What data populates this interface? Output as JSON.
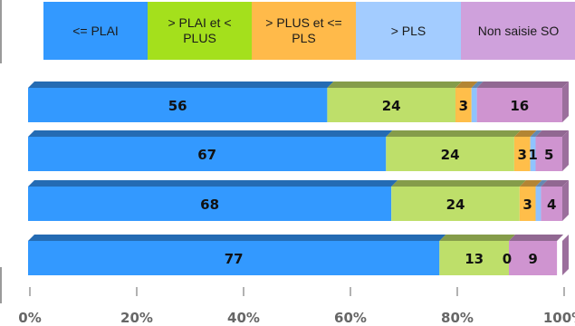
{
  "chart_data": {
    "type": "bar",
    "orientation": "horizontal",
    "stacked": true,
    "percent_stacked": true,
    "xlim": [
      0,
      100
    ],
    "x_ticks": [
      "0%",
      "20%",
      "40%",
      "60%",
      "80%",
      "100%"
    ],
    "grid": false,
    "legend_position": "top",
    "categories": [
      "",
      "",
      "",
      ""
    ],
    "series": [
      {
        "name": "<= PLAI",
        "color": "#3399ff",
        "values": [
          56,
          67,
          68,
          77
        ]
      },
      {
        "name": "> PLAI et < PLUS",
        "color": "#bedf6a",
        "values": [
          24,
          24,
          24,
          13
        ]
      },
      {
        "name": "> PLUS et <= PLS",
        "color": "#ffbe4a",
        "values": [
          3,
          3,
          3,
          0
        ]
      },
      {
        "name": "> PLS",
        "color": "#8fc3ff",
        "values": [
          1,
          1,
          1,
          0
        ]
      },
      {
        "name": "Non saisie SO",
        "color": "#cf94d0",
        "values": [
          16,
          5,
          4,
          9
        ]
      }
    ],
    "data_labels": [
      [
        "56",
        "24",
        "3",
        "",
        "16"
      ],
      [
        "67",
        "24",
        "3",
        "1",
        "5"
      ],
      [
        "68",
        "24",
        "3",
        "",
        "4"
      ],
      [
        "77",
        "13",
        "0",
        "",
        "9"
      ]
    ],
    "legend_colors": [
      "#3399ff",
      "#a4e01c",
      "#ffba4a",
      "#a3ccff",
      "#cfa1dc"
    ]
  }
}
